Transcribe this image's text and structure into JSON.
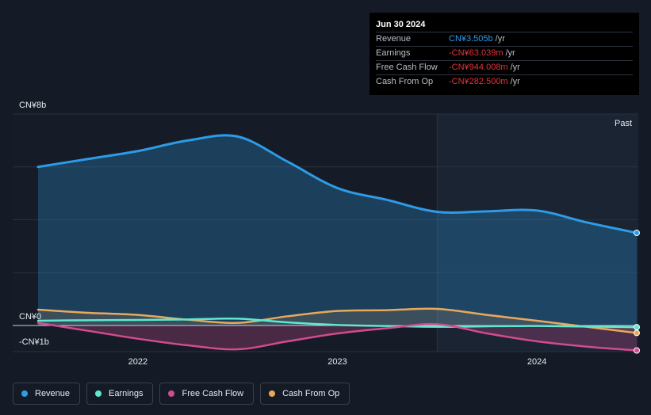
{
  "tooltip": {
    "date": "Jun 30 2024",
    "rows": [
      {
        "label": "Revenue",
        "value": "CN¥3.505b",
        "unit": "/yr",
        "color": "#2d9be6"
      },
      {
        "label": "Earnings",
        "value": "-CN¥63.039m",
        "unit": "/yr",
        "color": "#e0343b"
      },
      {
        "label": "Free Cash Flow",
        "value": "-CN¥944.008m",
        "unit": "/yr",
        "color": "#e0343b"
      },
      {
        "label": "Cash From Op",
        "value": "-CN¥282.500m",
        "unit": "/yr",
        "color": "#e0343b"
      }
    ]
  },
  "past_label": "Past",
  "legend": [
    {
      "label": "Revenue",
      "color": "#2d9be6"
    },
    {
      "label": "Earnings",
      "color": "#5ee8d0"
    },
    {
      "label": "Free Cash Flow",
      "color": "#d14b8f"
    },
    {
      "label": "Cash From Op",
      "color": "#e8a95c"
    }
  ],
  "chart_data": {
    "type": "line",
    "ylim": [
      -1,
      8
    ],
    "y_tick_labels": [
      {
        "value": 8,
        "label": "CN¥8b"
      },
      {
        "value": 0,
        "label": "CN¥0"
      },
      {
        "value": -1,
        "label": "-CN¥1b"
      }
    ],
    "x_tick_labels": [
      {
        "value": 2022,
        "label": "2022"
      },
      {
        "value": 2023,
        "label": "2023"
      },
      {
        "value": 2024,
        "label": "2024"
      }
    ],
    "xlim": [
      2021.35,
      2024.5
    ],
    "past_start": 2023.5,
    "grid": true,
    "series": [
      {
        "name": "Revenue",
        "color": "#2d9be6",
        "fill": true,
        "points": [
          [
            2021.5,
            6.0
          ],
          [
            2021.75,
            6.3
          ],
          [
            2022.0,
            6.6
          ],
          [
            2022.25,
            7.0
          ],
          [
            2022.5,
            7.15
          ],
          [
            2022.75,
            6.2
          ],
          [
            2023.0,
            5.2
          ],
          [
            2023.25,
            4.75
          ],
          [
            2023.5,
            4.3
          ],
          [
            2023.75,
            4.32
          ],
          [
            2024.0,
            4.35
          ],
          [
            2024.25,
            3.9
          ],
          [
            2024.5,
            3.505
          ]
        ]
      },
      {
        "name": "Earnings",
        "color": "#5ee8d0",
        "fill": false,
        "points": [
          [
            2021.5,
            0.18
          ],
          [
            2021.75,
            0.2
          ],
          [
            2022.0,
            0.21
          ],
          [
            2022.25,
            0.23
          ],
          [
            2022.5,
            0.26
          ],
          [
            2022.75,
            0.12
          ],
          [
            2023.0,
            0.02
          ],
          [
            2023.25,
            -0.02
          ],
          [
            2023.5,
            -0.05
          ],
          [
            2023.75,
            -0.03
          ],
          [
            2024.0,
            -0.02
          ],
          [
            2024.25,
            -0.04
          ],
          [
            2024.5,
            -0.063
          ]
        ]
      },
      {
        "name": "Free Cash Flow",
        "color": "#d14b8f",
        "fill": true,
        "points": [
          [
            2021.5,
            0.1
          ],
          [
            2021.75,
            -0.2
          ],
          [
            2022.0,
            -0.5
          ],
          [
            2022.25,
            -0.75
          ],
          [
            2022.5,
            -0.9
          ],
          [
            2022.75,
            -0.6
          ],
          [
            2023.0,
            -0.3
          ],
          [
            2023.25,
            -0.1
          ],
          [
            2023.5,
            0.05
          ],
          [
            2023.75,
            -0.3
          ],
          [
            2024.0,
            -0.6
          ],
          [
            2024.25,
            -0.8
          ],
          [
            2024.5,
            -0.944
          ]
        ]
      },
      {
        "name": "Cash From Op",
        "color": "#e8a95c",
        "fill": true,
        "points": [
          [
            2021.5,
            0.6
          ],
          [
            2021.75,
            0.48
          ],
          [
            2022.0,
            0.4
          ],
          [
            2022.25,
            0.22
          ],
          [
            2022.5,
            0.1
          ],
          [
            2022.75,
            0.35
          ],
          [
            2023.0,
            0.55
          ],
          [
            2023.25,
            0.58
          ],
          [
            2023.5,
            0.63
          ],
          [
            2023.75,
            0.4
          ],
          [
            2024.0,
            0.18
          ],
          [
            2024.25,
            -0.05
          ],
          [
            2024.5,
            -0.2825
          ]
        ]
      }
    ]
  }
}
